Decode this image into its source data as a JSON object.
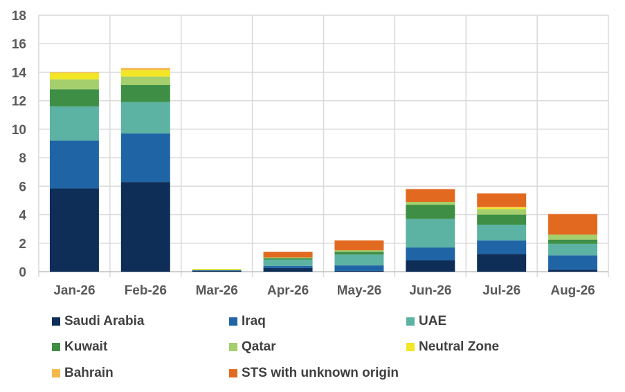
{
  "chart_data": {
    "type": "bar",
    "stacked": true,
    "categories": [
      "Jan-26",
      "Feb-26",
      "Mar-26",
      "Apr-26",
      "May-26",
      "Jun-26",
      "Jul-26",
      "Aug-26"
    ],
    "series": [
      {
        "name": "Saudi Arabia",
        "color": "#0e2d57",
        "values": [
          5.85,
          6.3,
          0.05,
          0.25,
          0.05,
          0.8,
          1.25,
          0.15
        ]
      },
      {
        "name": "Iraq",
        "color": "#1f65a6",
        "values": [
          3.35,
          3.4,
          0.05,
          0.15,
          0.4,
          0.9,
          0.95,
          1.0
        ]
      },
      {
        "name": "UAE",
        "color": "#5db3a3",
        "values": [
          2.4,
          2.2,
          0.0,
          0.45,
          0.75,
          2.0,
          1.1,
          0.8
        ]
      },
      {
        "name": "Kuwait",
        "color": "#3e8f45",
        "values": [
          1.2,
          1.2,
          0.0,
          0.1,
          0.2,
          1.0,
          0.7,
          0.3
        ]
      },
      {
        "name": "Qatar",
        "color": "#a4cf6c",
        "values": [
          0.7,
          0.6,
          0.05,
          0.05,
          0.1,
          0.2,
          0.4,
          0.35
        ]
      },
      {
        "name": "Neutral Zone",
        "color": "#f2e626",
        "values": [
          0.45,
          0.45,
          0.05,
          0.0,
          0.0,
          0.0,
          0.1,
          0.0
        ]
      },
      {
        "name": "Bahrain",
        "color": "#f6b84a",
        "values": [
          0.05,
          0.15,
          0.0,
          0.0,
          0.0,
          0.0,
          0.05,
          0.0
        ]
      },
      {
        "name": "STS with unknown origin",
        "color": "#e26a20",
        "values": [
          0.0,
          0.0,
          0.0,
          0.4,
          0.7,
          0.9,
          0.95,
          1.45
        ]
      }
    ],
    "yticks": [
      0,
      2,
      4,
      6,
      8,
      10,
      12,
      14,
      16,
      18
    ],
    "ylim": [
      0,
      18
    ],
    "grid": true,
    "legend_position": "bottom"
  }
}
